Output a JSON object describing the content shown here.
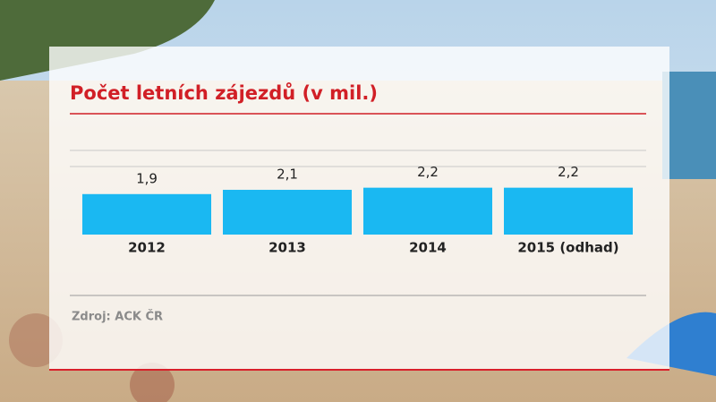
{
  "chart_data": {
    "type": "bar",
    "title": "Počet letních zájezdů (v mil.)",
    "categories": [
      "2012",
      "2013",
      "2014",
      "2015 (odhad)"
    ],
    "values": [
      1.9,
      2.1,
      2.2,
      2.2
    ],
    "value_labels": [
      "1,9",
      "2,1",
      "2,2",
      "2,2"
    ],
    "color": "#1ab8f2",
    "source": "Zdroj: ACK ČR"
  }
}
